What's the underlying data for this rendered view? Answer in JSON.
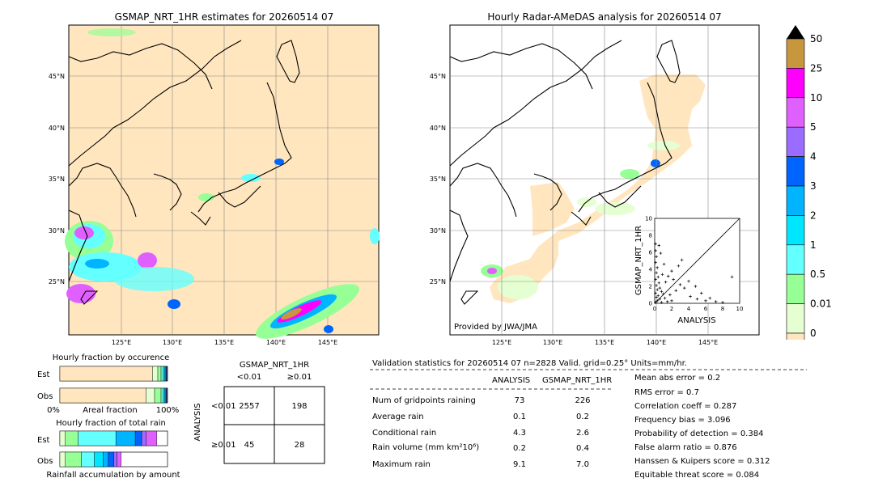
{
  "map_left": {
    "title": "GSMAP_NRT_1HR estimates for 20260514 07",
    "lat_labels": [
      "45°N",
      "40°N",
      "35°N",
      "30°N",
      "25°N"
    ],
    "lon_labels": [
      "125°E",
      "130°E",
      "135°E",
      "140°E",
      "145°E"
    ]
  },
  "map_right": {
    "title": "Hourly Radar-AMeDAS analysis for 20260514 07",
    "lat_labels": [
      "45°N",
      "40°N",
      "35°N",
      "30°N",
      "25°N"
    ],
    "lon_labels": [
      "125°E",
      "130°E",
      "135°E",
      "140°E",
      "145°E"
    ],
    "credit": "Provided by JWA/JMA"
  },
  "colorbar": {
    "levels": [
      "50",
      "25",
      "10",
      "5",
      "4",
      "3",
      "2",
      "1",
      "0.5",
      "0.01",
      "0"
    ],
    "colors": [
      "#c8963c",
      "#ff00ff",
      "#e060ff",
      "#9a6cff",
      "#0064ff",
      "#00b4ff",
      "#00e6ff",
      "#64ffff",
      "#96ff96",
      "#e6ffd2",
      "#ffe6be"
    ]
  },
  "chart_data": [
    {
      "type": "scatter",
      "title": "",
      "xlabel": "ANALYSIS",
      "ylabel": "GSMAP_NRT_1HR",
      "xlim": [
        0,
        10
      ],
      "ylim": [
        0,
        10
      ],
      "x_ticks": [
        "0",
        "2",
        "4",
        "6",
        "8",
        "10"
      ],
      "y_ticks": [
        "0",
        "2",
        "4",
        "6",
        "8",
        "10"
      ],
      "points": [
        [
          0.1,
          7.0
        ],
        [
          0.1,
          6.2
        ],
        [
          0.2,
          5.5
        ],
        [
          0.1,
          4.8
        ],
        [
          0.3,
          4.2
        ],
        [
          0.2,
          3.6
        ],
        [
          0.4,
          3.1
        ],
        [
          0.1,
          2.8
        ],
        [
          0.5,
          2.4
        ],
        [
          0.2,
          2.1
        ],
        [
          0.6,
          1.8
        ],
        [
          0.3,
          1.6
        ],
        [
          0.8,
          1.4
        ],
        [
          0.1,
          1.2
        ],
        [
          1.0,
          1.1
        ],
        [
          0.4,
          0.9
        ],
        [
          0.2,
          0.7
        ],
        [
          1.2,
          0.6
        ],
        [
          0.6,
          0.5
        ],
        [
          0.3,
          0.3
        ],
        [
          1.5,
          0.2
        ],
        [
          0.8,
          0.1
        ],
        [
          0.1,
          0.1
        ],
        [
          2.0,
          0.3
        ],
        [
          1.8,
          1.0
        ],
        [
          2.5,
          1.5
        ],
        [
          3.0,
          2.2
        ],
        [
          2.2,
          2.8
        ],
        [
          3.5,
          1.8
        ],
        [
          4.0,
          2.6
        ],
        [
          1.6,
          3.2
        ],
        [
          2.8,
          4.4
        ],
        [
          3.2,
          5.1
        ],
        [
          2.0,
          3.8
        ],
        [
          4.2,
          0.8
        ],
        [
          5.0,
          0.5
        ],
        [
          6.0,
          0.3
        ],
        [
          6.5,
          0.6
        ],
        [
          7.2,
          0.2
        ],
        [
          8.0,
          0.1
        ],
        [
          9.1,
          3.1
        ],
        [
          4.8,
          2.0
        ],
        [
          5.5,
          1.2
        ],
        [
          1.1,
          4.6
        ],
        [
          0.7,
          5.9
        ],
        [
          0.9,
          3.4
        ],
        [
          1.3,
          2.5
        ],
        [
          0.5,
          6.8
        ]
      ]
    },
    {
      "type": "bar",
      "title": "Hourly fraction by occurence",
      "categories": [
        "Est",
        "Obs"
      ],
      "xlabel": "Areal fraction",
      "x_ticks": [
        "0%",
        "100%"
      ],
      "series": [
        {
          "color": "#ffe6be",
          "values": [
            0.86,
            0.8
          ]
        },
        {
          "color": "#e6ffd2",
          "values": [
            0.05,
            0.08
          ]
        },
        {
          "color": "#96ff96",
          "values": [
            0.03,
            0.06
          ]
        },
        {
          "color": "#64ffff",
          "values": [
            0.02,
            0.02
          ]
        },
        {
          "color": "#00e6ff",
          "values": [
            0.015,
            0.015
          ]
        },
        {
          "color": "#00b4ff",
          "values": [
            0.01,
            0.01
          ]
        },
        {
          "color": "#0064ff",
          "values": [
            0.005,
            0.005
          ]
        },
        {
          "color": "#e060ff",
          "values": [
            0.005,
            0.005
          ]
        }
      ]
    },
    {
      "type": "bar",
      "title": "Hourly fraction of total rain",
      "categories": [
        "Est",
        "Obs"
      ],
      "xlabel": "Rainfall accumulation by amount",
      "series": [
        {
          "color": "#e6ffd2",
          "values": [
            0.05,
            0.05
          ]
        },
        {
          "color": "#96ff96",
          "values": [
            0.12,
            0.15
          ]
        },
        {
          "color": "#64ffff",
          "values": [
            0.35,
            0.12
          ]
        },
        {
          "color": "#00e6ff",
          "values": [
            0.0,
            0.08
          ]
        },
        {
          "color": "#00b4ff",
          "values": [
            0.18,
            0.05
          ]
        },
        {
          "color": "#0064ff",
          "values": [
            0.06,
            0.05
          ]
        },
        {
          "color": "#9a6cff",
          "values": [
            0.04,
            0.03
          ]
        },
        {
          "color": "#e060ff",
          "values": [
            0.1,
            0.04
          ]
        },
        {
          "color": "#ff00ff",
          "values": [
            0.0,
            0.0
          ]
        }
      ]
    }
  ],
  "contingency": {
    "title": "GSMAP_NRT_1HR",
    "col_labels": [
      "<0.01",
      "≥0.01"
    ],
    "row_axis": "ANALYSIS",
    "row_labels": [
      "<0.01",
      "≥0.01"
    ],
    "cells": [
      [
        "2557",
        "198"
      ],
      [
        "45",
        "28"
      ]
    ]
  },
  "validation": {
    "header": "Validation statistics for 20260514 07  n=2828 Valid. grid=0.25° Units=mm/hr.",
    "col_analysis": "ANALYSIS",
    "col_gsmap": "GSMAP_NRT_1HR",
    "rows": [
      {
        "label": "Num of gridpoints raining",
        "analysis": "73",
        "gsmap": "226"
      },
      {
        "label": "Average rain",
        "analysis": "0.1",
        "gsmap": "0.2"
      },
      {
        "label": "Conditional rain",
        "analysis": "4.3",
        "gsmap": "2.6"
      },
      {
        "label": "Rain volume (mm km²10⁶)",
        "analysis": "0.2",
        "gsmap": "0.4"
      },
      {
        "label": "Maximum rain",
        "analysis": "9.1",
        "gsmap": "7.0"
      }
    ],
    "scores": [
      "Mean abs error =    0.2",
      "RMS error =    0.7",
      "Correlation coeff =  0.287",
      "Frequency bias =  3.096",
      "Probability of detection =  0.384",
      "False alarm ratio =  0.876",
      "Hanssen & Kuipers score =  0.312",
      "Equitable threat score =  0.084"
    ]
  }
}
